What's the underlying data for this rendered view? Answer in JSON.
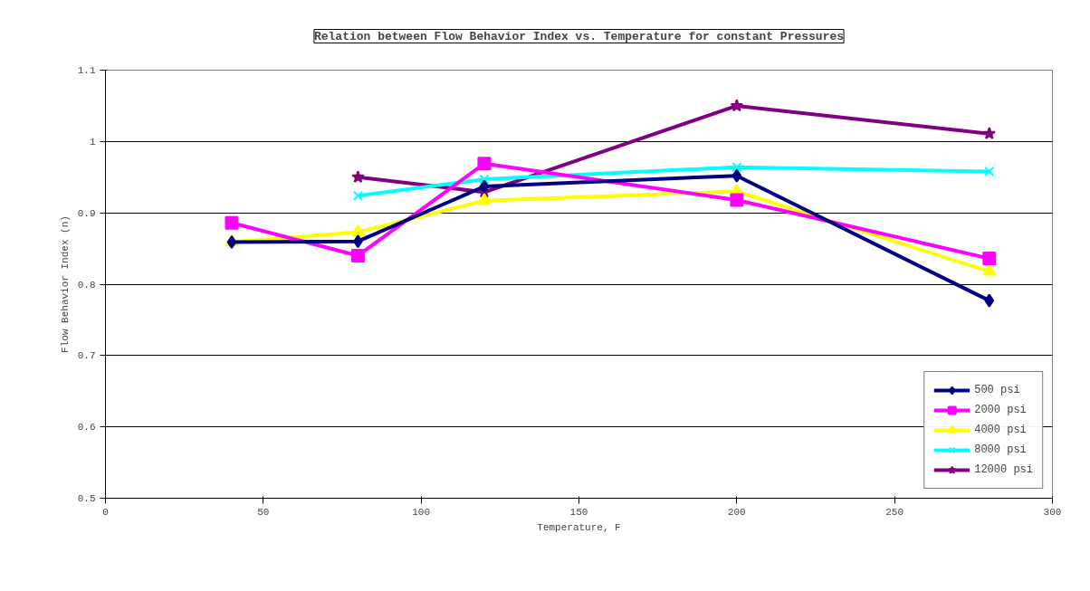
{
  "chart_data": {
    "type": "line",
    "title": "Relation between Flow Behavior Index vs. Temperature for constant Pressures",
    "xlabel": "Temperature, F",
    "ylabel": "Flow Behavior Index (n)",
    "x": [
      40,
      80,
      120,
      200,
      280
    ],
    "series": [
      {
        "name": "500 psi",
        "color": "#000080",
        "marker": "diamond",
        "values": [
          0.859,
          0.86,
          0.937,
          0.952,
          0.777
        ]
      },
      {
        "name": "2000 psi",
        "color": "#ff00ff",
        "marker": "square",
        "values": [
          0.886,
          0.84,
          0.969,
          0.918,
          0.836
        ]
      },
      {
        "name": "4000 psi",
        "color": "#ffff00",
        "marker": "triangle",
        "values": [
          0.859,
          0.873,
          0.917,
          0.93,
          0.818
        ]
      },
      {
        "name": "8000 psi",
        "color": "#00ffff",
        "marker": "cross",
        "values": [
          null,
          0.924,
          0.947,
          0.964,
          0.958
        ]
      },
      {
        "name": "12000 psi",
        "color": "#800080",
        "marker": "star",
        "values": [
          null,
          0.95,
          0.929,
          1.05,
          1.011
        ]
      }
    ],
    "xlim": [
      0,
      300
    ],
    "xticks": [
      0,
      50,
      100,
      150,
      200,
      250,
      300
    ],
    "ylim": [
      0.5,
      1.1
    ],
    "yticks": [
      0.5,
      0.6,
      0.7,
      0.8,
      0.9,
      1,
      1.1
    ],
    "grid": "y",
    "legend": "bottom right",
    "line_style": "solid"
  }
}
